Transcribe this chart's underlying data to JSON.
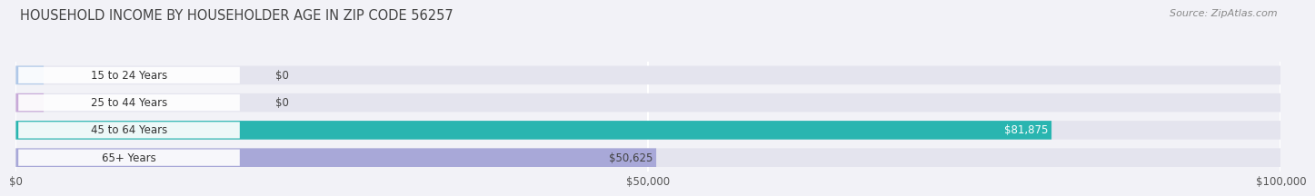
{
  "title": "HOUSEHOLD INCOME BY HOUSEHOLDER AGE IN ZIP CODE 56257",
  "source": "Source: ZipAtlas.com",
  "categories": [
    "15 to 24 Years",
    "25 to 44 Years",
    "45 to 64 Years",
    "65+ Years"
  ],
  "values": [
    0,
    0,
    81875,
    50625
  ],
  "bar_colors": [
    "#b0c8e8",
    "#c8aad8",
    "#29b5b0",
    "#a8a8d8"
  ],
  "label_colors": [
    "#444444",
    "#444444",
    "#ffffff",
    "#444444"
  ],
  "value_labels": [
    "$0",
    "$0",
    "$81,875",
    "$50,625"
  ],
  "xlim": [
    0,
    100000
  ],
  "xticks": [
    0,
    50000,
    100000
  ],
  "xtick_labels": [
    "$0",
    "$50,000",
    "$100,000"
  ],
  "background_color": "#f2f2f7",
  "bar_bg_color": "#e4e4ee",
  "title_fontsize": 10.5,
  "source_fontsize": 8
}
